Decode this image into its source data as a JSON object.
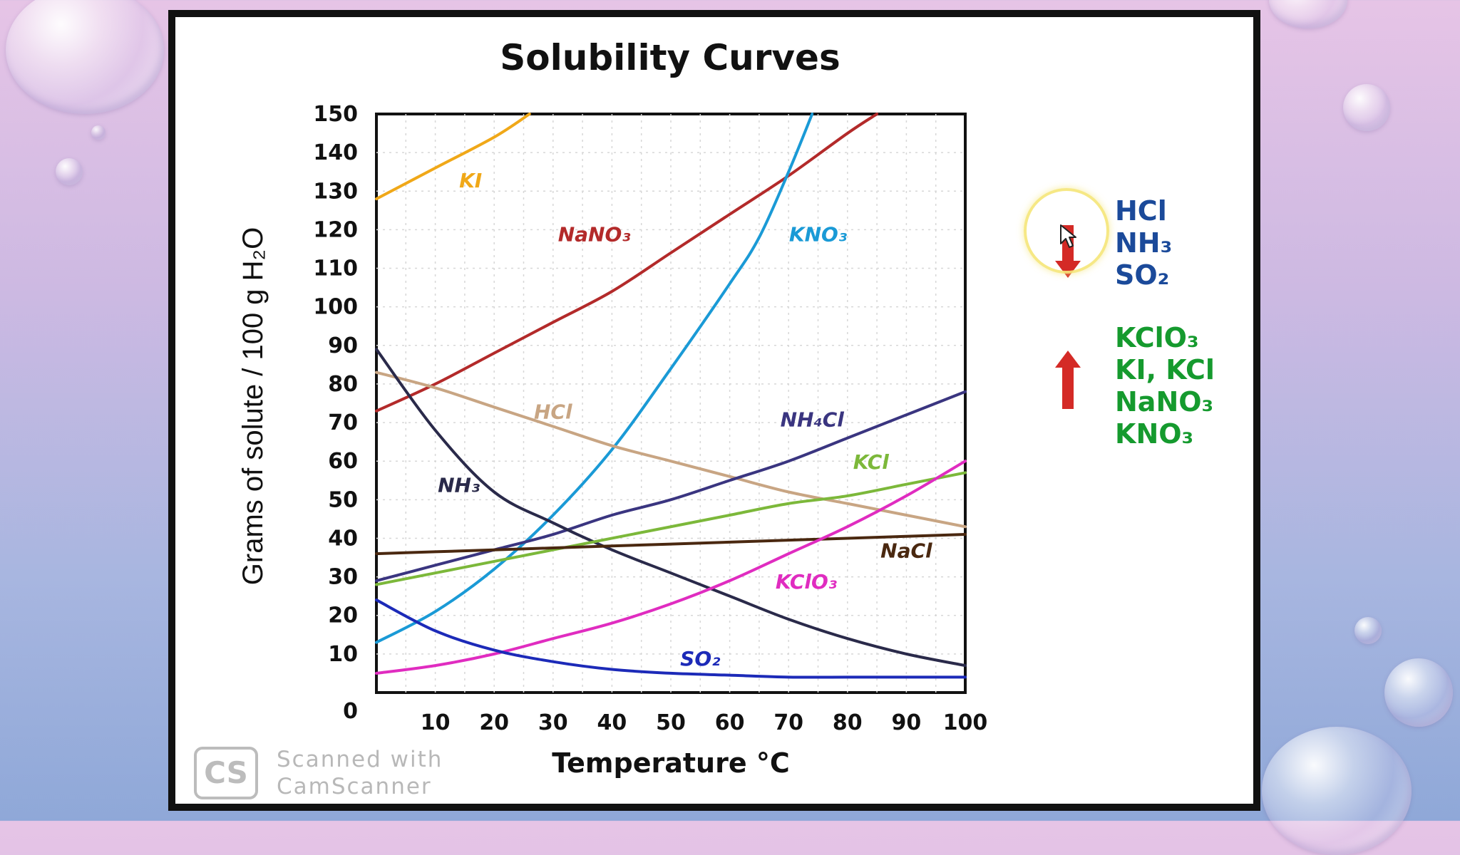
{
  "chart_data": {
    "type": "line",
    "title": "Solubility Curves",
    "xlabel": "Temperature °C",
    "ylabel": "Grams of solute / 100 g H₂O",
    "xlim": [
      0,
      100
    ],
    "ylim": [
      0,
      150
    ],
    "x_ticks": [
      10,
      20,
      30,
      40,
      50,
      60,
      70,
      80,
      90,
      100
    ],
    "y_ticks": [
      0,
      10,
      20,
      30,
      40,
      50,
      60,
      70,
      80,
      90,
      100,
      110,
      120,
      130,
      140,
      150
    ],
    "grid": true,
    "series": [
      {
        "name": "KI",
        "color": "#f0a818",
        "x": [
          0,
          10,
          20,
          26
        ],
        "y": [
          128,
          136,
          144,
          150
        ]
      },
      {
        "name": "NaNO₃",
        "color": "#b32a2a",
        "x": [
          0,
          10,
          20,
          30,
          40,
          50,
          60,
          70,
          80,
          85
        ],
        "y": [
          73,
          80,
          88,
          96,
          104,
          114,
          124,
          134,
          145,
          150
        ]
      },
      {
        "name": "KNO₃",
        "color": "#1a9ad6",
        "x": [
          0,
          10,
          20,
          30,
          40,
          50,
          60,
          65,
          70,
          74
        ],
        "y": [
          13,
          21,
          32,
          46,
          63,
          84,
          106,
          118,
          135,
          150
        ]
      },
      {
        "name": "HCl",
        "color": "#c8a583",
        "x": [
          0,
          10,
          20,
          30,
          40,
          50,
          60,
          70,
          80,
          90,
          100
        ],
        "y": [
          83,
          79,
          74,
          69,
          64,
          60,
          56,
          52,
          49,
          46,
          43
        ]
      },
      {
        "name": "NH₄Cl",
        "color": "#3a3580",
        "x": [
          0,
          10,
          20,
          30,
          40,
          50,
          60,
          70,
          80,
          90,
          100
        ],
        "y": [
          29,
          33,
          37,
          41,
          46,
          50,
          55,
          60,
          66,
          72,
          78
        ]
      },
      {
        "name": "NH₃",
        "color": "#2a2a4a",
        "x": [
          0,
          10,
          20,
          30,
          40,
          50,
          60,
          70,
          80,
          90,
          100
        ],
        "y": [
          89,
          68,
          52,
          44,
          37,
          31,
          25,
          19,
          14,
          10,
          7
        ]
      },
      {
        "name": "KCl",
        "color": "#7cb83a",
        "x": [
          0,
          10,
          20,
          30,
          40,
          50,
          60,
          70,
          80,
          90,
          100
        ],
        "y": [
          28,
          31,
          34,
          37,
          40,
          43,
          46,
          49,
          51,
          54,
          57
        ]
      },
      {
        "name": "NaCl",
        "color": "#4a2810",
        "x": [
          0,
          10,
          20,
          30,
          40,
          50,
          60,
          70,
          80,
          90,
          100
        ],
        "y": [
          36,
          36.5,
          37,
          37.5,
          38,
          38.5,
          39,
          39.5,
          40,
          40.5,
          41
        ]
      },
      {
        "name": "KClO₃",
        "color": "#e02cc0",
        "x": [
          0,
          10,
          20,
          30,
          40,
          50,
          60,
          70,
          80,
          90,
          100
        ],
        "y": [
          5,
          7,
          10,
          14,
          18,
          23,
          29,
          36,
          43,
          51,
          60
        ]
      },
      {
        "name": "SO₂",
        "color": "#1c2ab8",
        "x": [
          0,
          10,
          20,
          30,
          40,
          50,
          60,
          70,
          80,
          90,
          100
        ],
        "y": [
          24,
          16,
          11,
          8,
          6,
          5,
          4.5,
          4,
          4,
          4,
          4
        ]
      }
    ],
    "annotations": [
      {
        "text": "KI",
        "x": 16,
        "y": 131,
        "color": "#f0a818"
      },
      {
        "text": "NaNO₃",
        "x": 37,
        "y": 117,
        "color": "#b32a2a"
      },
      {
        "text": "KNO₃",
        "x": 75,
        "y": 117,
        "color": "#1a9ad6"
      },
      {
        "text": "HCl",
        "x": 30,
        "y": 71,
        "color": "#c8a583"
      },
      {
        "text": "NH₄Cl",
        "x": 74,
        "y": 69,
        "color": "#3a3580"
      },
      {
        "text": "NH₃",
        "x": 14,
        "y": 52,
        "color": "#2a2a4a"
      },
      {
        "text": "KCl",
        "x": 84,
        "y": 58,
        "color": "#7cb83a"
      },
      {
        "text": "NaCl",
        "x": 90,
        "y": 35,
        "color": "#4a2810"
      },
      {
        "text": "KClO₃",
        "x": 73,
        "y": 27,
        "color": "#e02cc0"
      },
      {
        "text": "SO₂",
        "x": 55,
        "y": 7,
        "color": "#1c2ab8"
      }
    ]
  },
  "legend_groups": {
    "decrease": {
      "arrow": "arrow-down-icon",
      "color": "#d42a26",
      "items": [
        "HCl",
        "NH₃",
        "SO₂"
      ]
    },
    "increase": {
      "arrow": "arrow-up-icon",
      "color": "#d42a26",
      "items": [
        "KClO₃",
        "KI, KCl",
        "NaNO₃",
        "KNO₃"
      ]
    }
  },
  "watermark": {
    "logo": "CS",
    "line1": "Scanned with",
    "line2": "CamScanner"
  }
}
